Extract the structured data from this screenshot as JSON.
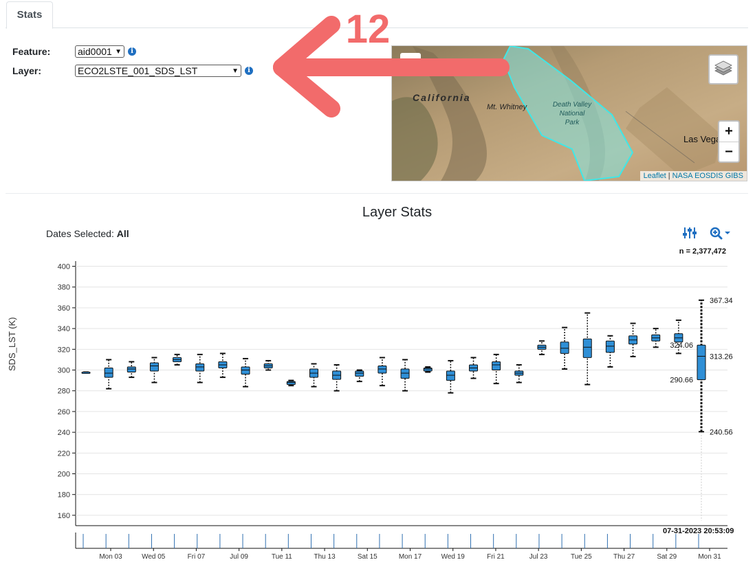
{
  "tabs": [
    {
      "label": "Stats"
    }
  ],
  "form": {
    "feature_label": "Feature:",
    "feature_value": "aid0001",
    "layer_label": "Layer:",
    "layer_value": "ECO2LSTE_001_SDS_LST"
  },
  "annotation": {
    "number": "12"
  },
  "map": {
    "labels": {
      "california": "California",
      "whitney": "Mt. Whitney",
      "dv1": "Death Valley",
      "dv2": "National",
      "dv3": "Park",
      "lasvegas": "Las Vegas"
    },
    "zoom_in": "+",
    "zoom_out": "−",
    "attribution_leaflet": "Leaflet",
    "attribution_sep": " | ",
    "attribution_gibs": "NASA EOSDIS GIBS",
    "polygon_color": "#6fe0e0"
  },
  "stats": {
    "title": "Layer Stats",
    "dates_label": "Dates Selected: ",
    "dates_value": "All",
    "n_label": "n = 2,377,472",
    "timestamp": "07-31-2023 20:53:09"
  },
  "chart_data": {
    "type": "box",
    "ylabel": "SDS_LST (K)",
    "ylim": [
      150,
      405
    ],
    "yticks": [
      160,
      180,
      200,
      220,
      240,
      260,
      280,
      300,
      320,
      340,
      360,
      380,
      400
    ],
    "xticks": [
      "Mon 03",
      "Wed 05",
      "Fri 07",
      "Jul 09",
      "Tue 11",
      "Thu 13",
      "Sat 15",
      "Mon 17",
      "Wed 19",
      "Fri 21",
      "Jul 23",
      "Tue 25",
      "Thu 27",
      "Sat 29",
      "Mon 31"
    ],
    "box_color": "#2f8fd6",
    "boxes": [
      {
        "min": 298,
        "q1": 298,
        "median": 298,
        "q3": 298,
        "max": 298
      },
      {
        "min": 282,
        "q1": 293,
        "median": 297,
        "q3": 302,
        "max": 310
      },
      {
        "min": 293,
        "q1": 298,
        "median": 301,
        "q3": 303,
        "max": 308
      },
      {
        "min": 288,
        "q1": 299,
        "median": 304,
        "q3": 307,
        "max": 312
      },
      {
        "min": 305,
        "q1": 308,
        "median": 310,
        "q3": 312,
        "max": 315
      },
      {
        "min": 288,
        "q1": 299,
        "median": 303,
        "q3": 306,
        "max": 315
      },
      {
        "min": 293,
        "q1": 302,
        "median": 305,
        "q3": 308,
        "max": 316
      },
      {
        "min": 284,
        "q1": 296,
        "median": 300,
        "q3": 303,
        "max": 311
      },
      {
        "min": 300,
        "q1": 302,
        "median": 304,
        "q3": 306,
        "max": 309
      },
      {
        "min": 285,
        "q1": 286,
        "median": 288,
        "q3": 289,
        "max": 290
      },
      {
        "min": 284,
        "q1": 293,
        "median": 297,
        "q3": 301,
        "max": 306
      },
      {
        "min": 280,
        "q1": 291,
        "median": 295,
        "q3": 299,
        "max": 305
      },
      {
        "min": 289,
        "q1": 294,
        "median": 297,
        "q3": 299,
        "max": 300
      },
      {
        "min": 285,
        "q1": 297,
        "median": 301,
        "q3": 304,
        "max": 312
      },
      {
        "min": 280,
        "q1": 292,
        "median": 297,
        "q3": 301,
        "max": 310
      },
      {
        "min": 298,
        "q1": 299,
        "median": 301,
        "q3": 302,
        "max": 303
      },
      {
        "min": 278,
        "q1": 290,
        "median": 295,
        "q3": 299,
        "max": 309
      },
      {
        "min": 292,
        "q1": 299,
        "median": 302,
        "q3": 305,
        "max": 312
      },
      {
        "min": 287,
        "q1": 300,
        "median": 305,
        "q3": 308,
        "max": 315
      },
      {
        "min": 288,
        "q1": 295,
        "median": 297,
        "q3": 299,
        "max": 305
      },
      {
        "min": 315,
        "q1": 320,
        "median": 322,
        "q3": 324,
        "max": 328
      },
      {
        "min": 301,
        "q1": 316,
        "median": 321,
        "q3": 327,
        "max": 341
      },
      {
        "min": 286,
        "q1": 312,
        "median": 322,
        "q3": 330,
        "max": 355
      },
      {
        "min": 303,
        "q1": 317,
        "median": 323,
        "q3": 328,
        "max": 333
      },
      {
        "min": 313,
        "q1": 325,
        "median": 329,
        "q3": 333,
        "max": 345
      },
      {
        "min": 322,
        "q1": 328,
        "median": 331,
        "q3": 334,
        "max": 340
      },
      {
        "min": 316,
        "q1": 327,
        "median": 331,
        "q3": 335,
        "max": 348
      },
      {
        "min": 240.56,
        "q1": 290.66,
        "median": 313.26,
        "q3": 324.06,
        "max": 367.34
      }
    ],
    "annotations": {
      "max": "367.34",
      "q3": "324.06",
      "median": "313.26",
      "q1": "290.66",
      "min": "240.56"
    }
  }
}
